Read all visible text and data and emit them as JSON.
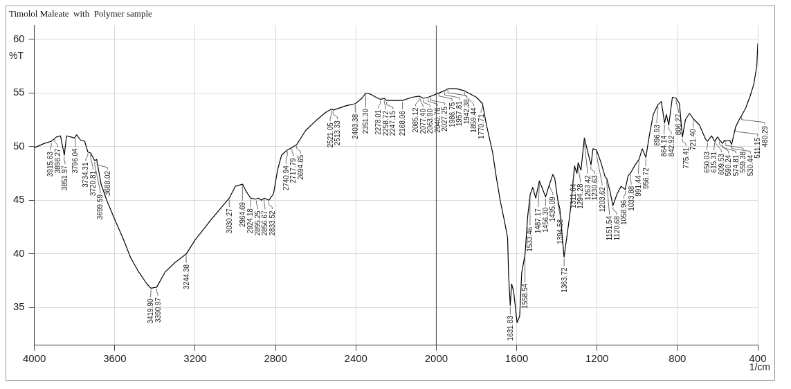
{
  "chart_data": {
    "type": "line",
    "title": "Timolol Maleate  with  Polymer sample",
    "xlabel": "1/cm",
    "ylabel": "%T",
    "xlim": [
      4000,
      400
    ],
    "xticks": [
      4000,
      3600,
      3200,
      2800,
      2400,
      2000,
      1600,
      1200,
      800,
      400
    ],
    "ylim": [
      31.5,
      61.3
    ],
    "yticks": [
      35,
      40,
      45,
      50,
      55,
      60
    ],
    "grid": true,
    "legend": false,
    "marker": "none",
    "line_style": "solid",
    "ref_lines": [
      {
        "axis": "x",
        "value": 2000,
        "color": "#444444"
      }
    ],
    "series": [
      {
        "color": "#000000",
        "x": [
          4000,
          3950,
          3915,
          3890,
          3870,
          3851,
          3840,
          3800,
          3790,
          3770,
          3750,
          3734,
          3720,
          3700,
          3690,
          3668,
          3640,
          3600,
          3560,
          3520,
          3480,
          3440,
          3420,
          3391,
          3350,
          3300,
          3244,
          3200,
          3120,
          3030,
          3000,
          2964,
          2945,
          2924,
          2900,
          2885,
          2870,
          2856,
          2833,
          2810,
          2790,
          2770,
          2741,
          2718,
          2694,
          2650,
          2600,
          2550,
          2521,
          2513,
          2450,
          2403,
          2370,
          2351,
          2330,
          2300,
          2278,
          2258,
          2247,
          2168,
          2120,
          2085,
          2063,
          2040,
          2000,
          1960,
          1940,
          1900,
          1860,
          1800,
          1770,
          1750,
          1720,
          1700,
          1680,
          1660,
          1645,
          1640,
          1632,
          1625,
          1615,
          1598,
          1585,
          1575,
          1558,
          1545,
          1533,
          1520,
          1505,
          1487,
          1470,
          1456,
          1440,
          1420,
          1410,
          1395,
          1385,
          1364,
          1340,
          1330,
          1312,
          1300,
          1294,
          1280,
          1263,
          1250,
          1230,
          1220,
          1203,
          1180,
          1160,
          1151,
          1135,
          1121,
          1100,
          1080,
          1060,
          1045,
          1034,
          1010,
          991,
          975,
          957,
          940,
          920,
          897,
          880,
          864,
          855,
          843,
          825,
          806,
          790,
          775,
          760,
          740,
          721,
          690,
          660,
          650,
          630,
          615,
          600,
          590,
          575,
          565,
          559,
          540,
          530,
          511,
          490,
          480,
          460,
          440,
          420,
          405,
          400
        ],
        "values": [
          49.9,
          50.3,
          50.5,
          50.9,
          51.0,
          49.2,
          51.0,
          50.8,
          51.1,
          50.6,
          50.5,
          49.5,
          49.4,
          48.7,
          48.8,
          46.5,
          45.0,
          43.2,
          41.5,
          39.6,
          38.3,
          37.2,
          36.8,
          36.9,
          38.3,
          39.2,
          40.0,
          41.3,
          43.2,
          45.2,
          46.3,
          46.5,
          45.8,
          45.2,
          45.1,
          45.2,
          45.0,
          45.2,
          45.0,
          45.6,
          47.8,
          49.2,
          49.7,
          49.9,
          50.2,
          51.5,
          52.4,
          53.2,
          53.5,
          53.4,
          53.8,
          54.0,
          54.5,
          55.0,
          54.9,
          54.6,
          54.4,
          54.5,
          54.3,
          54.3,
          54.6,
          54.7,
          54.5,
          54.6,
          54.9,
          55.2,
          55.4,
          55.4,
          55.2,
          54.6,
          54.0,
          52.0,
          49.5,
          47.0,
          44.8,
          43.0,
          41.5,
          38.0,
          35.2,
          37.2,
          36.5,
          33.6,
          34.2,
          38.2,
          40.0,
          43.5,
          45.5,
          46.2,
          45.2,
          46.8,
          46.0,
          45.3,
          46.3,
          47.4,
          47.0,
          45.0,
          44.2,
          39.7,
          43.0,
          44.5,
          48.2,
          47.5,
          48.5,
          47.8,
          50.8,
          49.8,
          48.3,
          49.8,
          49.7,
          48.5,
          47.2,
          47.0,
          45.8,
          44.5,
          45.6,
          46.3,
          46.0,
          47.3,
          47.5,
          48.3,
          48.8,
          49.8,
          49.0,
          51.0,
          53.0,
          53.9,
          54.2,
          52.2,
          53.0,
          52.0,
          54.6,
          54.5,
          54.0,
          50.9,
          52.5,
          53.1,
          52.6,
          52.0,
          50.7,
          50.5,
          51.0,
          50.5,
          50.9,
          50.6,
          50.3,
          50.6,
          50.5,
          50.6,
          50.2,
          51.8,
          52.6,
          52.9,
          53.6,
          54.6,
          55.8,
          57.5,
          59.6
        ]
      }
    ],
    "annotations": [
      {
        "text": "3915.63",
        "x": 3915.63,
        "y": 50.5
      },
      {
        "text": "3898.27",
        "x": 3898.27,
        "y": 50.8
      },
      {
        "text": "3851.97",
        "x": 3851.97,
        "y": 49.2
      },
      {
        "text": "3796.04",
        "x": 3796.04,
        "y": 50.9
      },
      {
        "text": "3734.31",
        "x": 3734.31,
        "y": 49.5
      },
      {
        "text": "3720.81",
        "x": 3720.81,
        "y": 49.4
      },
      {
        "text": "3699.59",
        "x": 3699.59,
        "y": 48.7
      },
      {
        "text": "3688.02",
        "x": 3688.02,
        "y": 48.7
      },
      {
        "text": "3419.90",
        "x": 3419.9,
        "y": 36.8
      },
      {
        "text": "3390.97",
        "x": 3390.97,
        "y": 36.9
      },
      {
        "text": "3244.38",
        "x": 3244.38,
        "y": 40.0
      },
      {
        "text": "3030.27",
        "x": 3030.27,
        "y": 45.2
      },
      {
        "text": "2964.69",
        "x": 2964.69,
        "y": 46.5
      },
      {
        "text": "2924.18",
        "x": 2924.18,
        "y": 45.2
      },
      {
        "text": "2895.25",
        "x": 2895.25,
        "y": 45.1
      },
      {
        "text": "2856.67",
        "x": 2856.67,
        "y": 45.2
      },
      {
        "text": "2833.52",
        "x": 2833.52,
        "y": 45.0
      },
      {
        "text": "2740.94",
        "x": 2740.94,
        "y": 49.7
      },
      {
        "text": "2717.79",
        "x": 2717.79,
        "y": 49.9
      },
      {
        "text": "2694.65",
        "x": 2694.65,
        "y": 50.2
      },
      {
        "text": "2521.05",
        "x": 2521.05,
        "y": 53.5
      },
      {
        "text": "2513.33",
        "x": 2513.33,
        "y": 53.4
      },
      {
        "text": "2403.38",
        "x": 2403.38,
        "y": 54.0
      },
      {
        "text": "2351.30",
        "x": 2351.3,
        "y": 55.0
      },
      {
        "text": "2278.01",
        "x": 2278.01,
        "y": 54.4
      },
      {
        "text": "2258.72",
        "x": 2258.72,
        "y": 54.5
      },
      {
        "text": "2247.15",
        "x": 2247.15,
        "y": 54.3
      },
      {
        "text": "2168.06",
        "x": 2168.06,
        "y": 54.3
      },
      {
        "text": "2085.12",
        "x": 2085.12,
        "y": 54.7
      },
      {
        "text": "2077.40",
        "x": 2077.4,
        "y": 54.6
      },
      {
        "text": "2063.90",
        "x": 2063.9,
        "y": 54.5
      },
      {
        "text": "2040.76",
        "x": 2040.76,
        "y": 54.6
      },
      {
        "text": "2027.25",
        "x": 2027.25,
        "y": 54.7
      },
      {
        "text": "1986.75",
        "x": 1986.75,
        "y": 55.1
      },
      {
        "text": "1957.81",
        "x": 1957.81,
        "y": 55.2
      },
      {
        "text": "1942.38",
        "x": 1942.38,
        "y": 55.4
      },
      {
        "text": "1859.44",
        "x": 1859.44,
        "y": 55.2
      },
      {
        "text": "1770.71",
        "x": 1770.71,
        "y": 54.0
      },
      {
        "text": "1631.83",
        "x": 1631.83,
        "y": 35.2
      },
      {
        "text": "1558.54",
        "x": 1558.54,
        "y": 40.0
      },
      {
        "text": "1533.46",
        "x": 1533.46,
        "y": 45.5
      },
      {
        "text": "1487.17",
        "x": 1487.17,
        "y": 46.8
      },
      {
        "text": "1456.30",
        "x": 1456.3,
        "y": 45.3
      },
      {
        "text": "1435.09",
        "x": 1435.09,
        "y": 46.6
      },
      {
        "text": "1394.58",
        "x": 1394.58,
        "y": 45.0
      },
      {
        "text": "1363.72",
        "x": 1363.72,
        "y": 39.7
      },
      {
        "text": "1311.64",
        "x": 1311.64,
        "y": 48.2
      },
      {
        "text": "1294.28",
        "x": 1294.28,
        "y": 48.5
      },
      {
        "text": "1263.42",
        "x": 1263.42,
        "y": 50.8
      },
      {
        "text": "1230.63",
        "x": 1230.63,
        "y": 48.3
      },
      {
        "text": "1203.62",
        "x": 1203.62,
        "y": 49.7
      },
      {
        "text": "1151.54",
        "x": 1151.54,
        "y": 47.0
      },
      {
        "text": "1120.68",
        "x": 1120.68,
        "y": 44.5
      },
      {
        "text": "1058.96",
        "x": 1058.96,
        "y": 46.0
      },
      {
        "text": "1033.88",
        "x": 1033.88,
        "y": 47.5
      },
      {
        "text": "991.44",
        "x": 991.44,
        "y": 48.8
      },
      {
        "text": "956.72",
        "x": 956.72,
        "y": 49.0
      },
      {
        "text": "896.93",
        "x": 896.93,
        "y": 53.9
      },
      {
        "text": "864.14",
        "x": 864.14,
        "y": 52.2
      },
      {
        "text": "842.92",
        "x": 842.92,
        "y": 52.0
      },
      {
        "text": "806.27",
        "x": 806.27,
        "y": 54.5
      },
      {
        "text": "775.41",
        "x": 775.41,
        "y": 50.9
      },
      {
        "text": "721.40",
        "x": 721.4,
        "y": 52.6
      },
      {
        "text": "650.03",
        "x": 650.03,
        "y": 50.5
      },
      {
        "text": "615.31",
        "x": 615.31,
        "y": 50.5
      },
      {
        "text": "609.53",
        "x": 609.53,
        "y": 50.7
      },
      {
        "text": "590.24",
        "x": 590.24,
        "y": 50.6
      },
      {
        "text": "574.81",
        "x": 574.81,
        "y": 50.3
      },
      {
        "text": "559.38",
        "x": 559.38,
        "y": 50.5
      },
      {
        "text": "530.44",
        "x": 530.44,
        "y": 50.2
      },
      {
        "text": "511.15",
        "x": 511.15,
        "y": 51.8
      },
      {
        "text": "480.29",
        "x": 480.29,
        "y": 52.9
      }
    ]
  }
}
